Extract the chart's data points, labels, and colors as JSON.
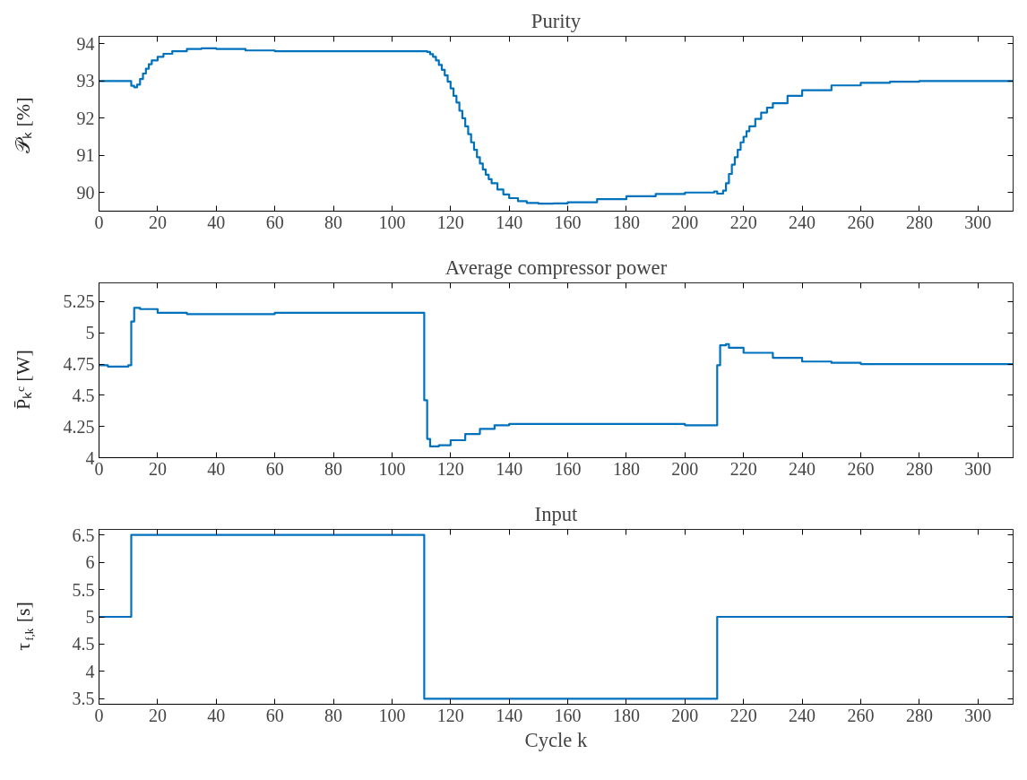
{
  "chart_data": [
    {
      "type": "step",
      "title": "Purity",
      "ylabel": "𝒫ₖ [%]",
      "color": "#0072bd",
      "grid": false,
      "xlim": [
        0,
        312
      ],
      "ylim": [
        89.5,
        94.2
      ],
      "xticks": [
        0,
        20,
        40,
        60,
        80,
        100,
        120,
        140,
        160,
        180,
        200,
        220,
        240,
        260,
        280,
        300
      ],
      "yticks": [
        90,
        91,
        92,
        93,
        94
      ],
      "x": [
        0,
        10,
        11,
        12,
        13,
        14,
        15,
        16,
        17,
        18,
        20,
        22,
        25,
        30,
        35,
        40,
        50,
        60,
        80,
        100,
        111,
        112,
        113,
        114,
        115,
        116,
        117,
        118,
        119,
        120,
        121,
        122,
        123,
        124,
        125,
        126,
        127,
        128,
        129,
        130,
        131,
        132,
        133,
        134,
        136,
        138,
        140,
        143,
        146,
        150,
        155,
        160,
        170,
        180,
        190,
        200,
        210,
        211,
        212,
        213,
        214,
        215,
        216,
        217,
        218,
        219,
        220,
        221,
        222,
        224,
        226,
        228,
        230,
        235,
        240,
        250,
        260,
        270,
        280,
        312
      ],
      "values": [
        93,
        93,
        92.87,
        92.83,
        92.9,
        93.05,
        93.2,
        93.33,
        93.45,
        93.55,
        93.65,
        93.73,
        93.8,
        93.86,
        93.88,
        93.86,
        93.82,
        93.8,
        93.8,
        93.8,
        93.8,
        93.78,
        93.72,
        93.65,
        93.55,
        93.43,
        93.3,
        93.15,
        92.98,
        92.8,
        92.6,
        92.42,
        92.2,
        92.0,
        91.78,
        91.57,
        91.35,
        91.15,
        90.95,
        90.78,
        90.62,
        90.48,
        90.36,
        90.25,
        90.08,
        89.95,
        89.85,
        89.77,
        89.72,
        89.7,
        89.71,
        89.74,
        89.82,
        89.9,
        89.96,
        90.0,
        90.03,
        89.97,
        89.97,
        90.05,
        90.25,
        90.5,
        90.75,
        90.95,
        91.15,
        91.35,
        91.5,
        91.65,
        91.78,
        91.98,
        92.15,
        92.28,
        92.4,
        92.6,
        92.75,
        92.88,
        92.95,
        92.98,
        93.0,
        93.0
      ]
    },
    {
      "type": "step",
      "title": "Average compressor power",
      "ylabel": "P̄ₖᶜ [W]",
      "color": "#0072bd",
      "grid": false,
      "xlim": [
        0,
        312
      ],
      "ylim": [
        4,
        5.4
      ],
      "xticks": [
        0,
        20,
        40,
        60,
        80,
        100,
        120,
        140,
        160,
        180,
        200,
        220,
        240,
        260,
        280,
        300
      ],
      "yticks": [
        4,
        4.25,
        4.5,
        4.75,
        5,
        5.25
      ],
      "x": [
        0,
        3,
        10,
        11,
        12,
        14,
        20,
        30,
        60,
        110,
        111,
        112,
        113,
        116,
        120,
        125,
        130,
        135,
        140,
        160,
        180,
        200,
        210,
        211,
        212,
        214,
        215,
        220,
        230,
        240,
        250,
        260,
        312
      ],
      "values": [
        4.74,
        4.73,
        4.74,
        5.09,
        5.2,
        5.19,
        5.16,
        5.15,
        5.16,
        5.16,
        4.46,
        4.15,
        4.09,
        4.1,
        4.14,
        4.19,
        4.23,
        4.26,
        4.27,
        4.27,
        4.27,
        4.26,
        4.26,
        4.74,
        4.9,
        4.91,
        4.88,
        4.84,
        4.8,
        4.77,
        4.76,
        4.75,
        4.75
      ]
    },
    {
      "type": "step",
      "title": "Input",
      "ylabel": "τ$_{f,k}$ [s]",
      "xlabel": "Cycle k",
      "color": "#0072bd",
      "grid": false,
      "xlim": [
        0,
        312
      ],
      "ylim": [
        3.4,
        6.6
      ],
      "xticks": [
        0,
        20,
        40,
        60,
        80,
        100,
        120,
        140,
        160,
        180,
        200,
        220,
        240,
        260,
        280,
        300
      ],
      "yticks": [
        3.5,
        4,
        4.5,
        5,
        5.5,
        6,
        6.5
      ],
      "x": [
        0,
        11,
        111,
        211,
        312
      ],
      "values": [
        5,
        6.5,
        3.5,
        5,
        5
      ]
    }
  ]
}
